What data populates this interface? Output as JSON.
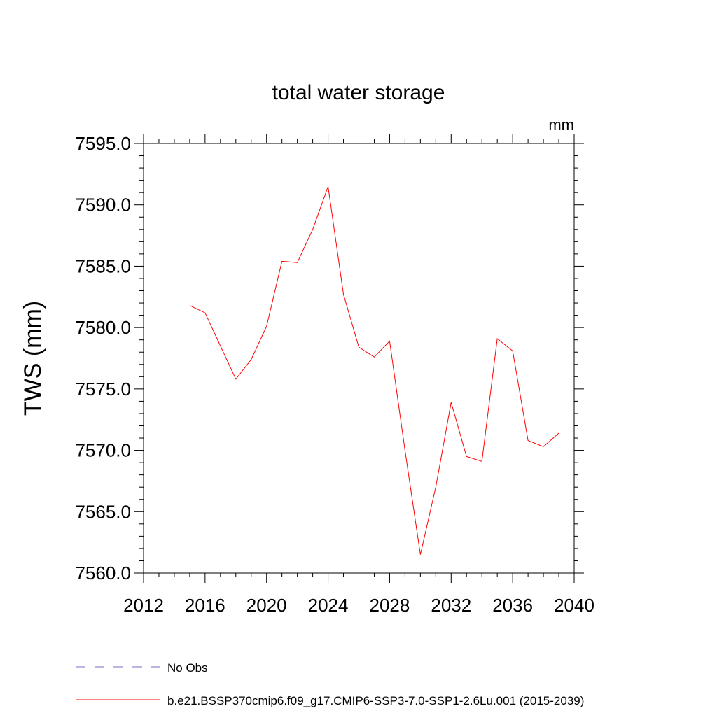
{
  "chart_data": {
    "type": "line",
    "title": "total water storage",
    "units_label": "mm",
    "xlabel": "",
    "ylabel": "TWS  (mm)",
    "xlim": [
      2012,
      2040
    ],
    "ylim": [
      7560,
      7595
    ],
    "x_ticks": [
      2012,
      2016,
      2020,
      2024,
      2028,
      2032,
      2036,
      2040
    ],
    "x_tick_labels": [
      "2012",
      "2016",
      "2020",
      "2024",
      "2028",
      "2032",
      "2036",
      "2040"
    ],
    "y_ticks": [
      7560,
      7565,
      7570,
      7575,
      7580,
      7585,
      7590,
      7595
    ],
    "y_tick_labels": [
      "7560.0",
      "7565.0",
      "7570.0",
      "7575.0",
      "7580.0",
      "7585.0",
      "7590.0",
      "7595.0"
    ],
    "grid": false,
    "legend_position": "bottom",
    "series": [
      {
        "name": "b.e21.BSSP370cmip6.f09_g17.CMIP6-SSP3-7.0-SSP1-2.6Lu.001 (2015-2039)",
        "color": "#ff0000",
        "style": "solid",
        "x": [
          2015,
          2016,
          2017,
          2018,
          2019,
          2020,
          2021,
          2022,
          2023,
          2024,
          2025,
          2026,
          2027,
          2028,
          2029,
          2030,
          2031,
          2032,
          2033,
          2034,
          2035,
          2036,
          2037,
          2038,
          2039
        ],
        "values": [
          7581.8,
          7581.2,
          7578.5,
          7575.8,
          7577.4,
          7580.1,
          7585.4,
          7585.3,
          7588.0,
          7591.5,
          7582.7,
          7578.4,
          7577.6,
          7578.9,
          7570.0,
          7561.5,
          7567.0,
          7573.9,
          7569.5,
          7569.1,
          7579.1,
          7578.1,
          7570.8,
          7570.3,
          7571.4
        ]
      }
    ],
    "legend": [
      {
        "label": "No Obs",
        "color": "#7b68c8",
        "style": "dashed"
      },
      {
        "label": "b.e21.BSSP370cmip6.f09_g17.CMIP6-SSP3-7.0-SSP1-2.6Lu.001 (2015-2039)",
        "color": "#ff0000",
        "style": "solid"
      }
    ]
  }
}
